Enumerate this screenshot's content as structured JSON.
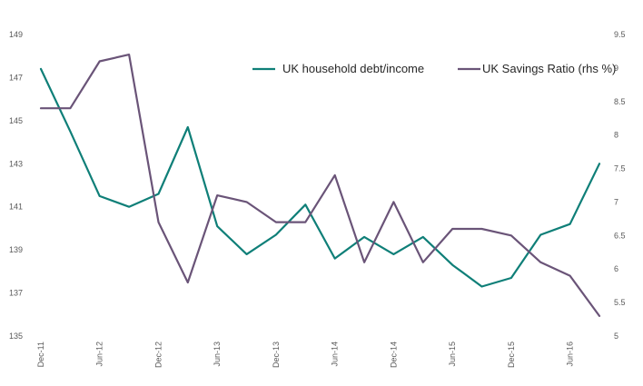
{
  "chart_data": {
    "type": "line",
    "title": "",
    "xlabel": "",
    "ylabel": "",
    "y2label": "",
    "x": [
      "Dec-11",
      "",
      "Jun-12",
      "",
      "Dec-12",
      "",
      "Jun-13",
      "",
      "Dec-13",
      "",
      "Jun-14",
      "",
      "Dec-14",
      "",
      "Jun-15",
      "",
      "Dec-15",
      "",
      "Jun-16",
      ""
    ],
    "ylim": [
      135,
      149
    ],
    "y_ticks": [
      135,
      137,
      139,
      141,
      143,
      145,
      147,
      149
    ],
    "y2lim": [
      5,
      9.5
    ],
    "y2_ticks": [
      "5",
      "5.5",
      "6",
      "6.5",
      "7",
      "7.5",
      "8",
      "8.5",
      "9",
      "9.5"
    ],
    "grid": false,
    "legend_position": "top-center",
    "series": [
      {
        "name": "UK household debt/income",
        "axis": "left",
        "color": "#0f7f78",
        "values": [
          147.4,
          144.5,
          141.5,
          141.0,
          141.6,
          144.7,
          140.1,
          138.8,
          139.7,
          141.1,
          138.6,
          139.6,
          138.8,
          139.6,
          138.3,
          137.3,
          137.7,
          139.7,
          140.2,
          143.0
        ]
      },
      {
        "name": "UK Savings Ratio (rhs %)",
        "axis": "right",
        "color": "#6a5478",
        "values": [
          8.4,
          8.4,
          9.1,
          9.2,
          6.7,
          5.8,
          7.1,
          7.0,
          6.7,
          6.7,
          7.4,
          6.1,
          7.0,
          6.1,
          6.6,
          6.6,
          6.5,
          6.1,
          5.9,
          5.3
        ]
      }
    ]
  }
}
